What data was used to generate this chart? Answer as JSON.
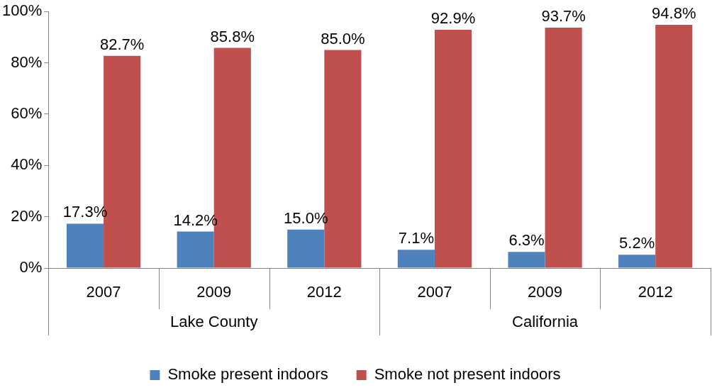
{
  "chart_data": {
    "type": "bar",
    "categories": [
      "2007",
      "2009",
      "2012",
      "2007",
      "2009",
      "2012"
    ],
    "series": [
      {
        "name": "Smoke present indoors",
        "color": "#4f81bd",
        "values": [
          17.3,
          14.2,
          15.0,
          7.1,
          6.3,
          5.2
        ],
        "value_labels": [
          "17.3%",
          "14.2%",
          "15.0%",
          "7.1%",
          "6.3%",
          "5.2%"
        ]
      },
      {
        "name": "Smoke not present indoors",
        "color": "#c0504d",
        "values": [
          82.7,
          85.8,
          85.0,
          92.9,
          93.7,
          94.8
        ],
        "value_labels": [
          "82.7%",
          "85.8%",
          "85.0%",
          "92.9%",
          "93.7%",
          "94.8%"
        ]
      }
    ],
    "annotations": [
      "Lake County",
      "California"
    ],
    "ylim": [
      0,
      100
    ],
    "yticks": [
      {
        "value": 0,
        "label": "0%"
      },
      {
        "value": 20,
        "label": "20%"
      },
      {
        "value": 40,
        "label": "40%"
      },
      {
        "value": 60,
        "label": "60%"
      },
      {
        "value": 80,
        "label": "80%"
      },
      {
        "value": 100,
        "label": "100%"
      }
    ],
    "grid": false,
    "legend": "bottom"
  }
}
